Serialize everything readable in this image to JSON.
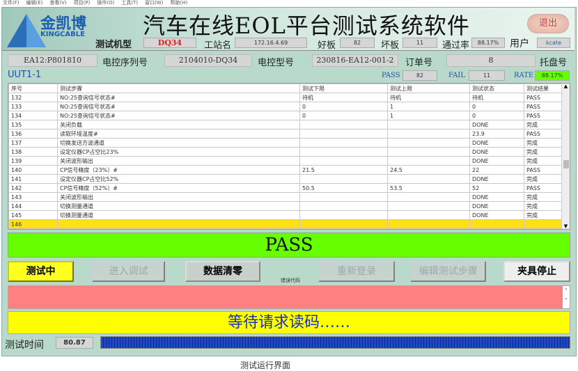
{
  "menu": [
    "文件(F)",
    "编辑(E)",
    "查看(V)",
    "项目(P)",
    "操作(O)",
    "工具(T)",
    "窗口(W)",
    "帮助(H)"
  ],
  "header": {
    "title": "汽车在线EOL平台测试系统软件",
    "logo_text": "金凯博",
    "logo_sub": "KINGCABLE",
    "exit_label": "退出",
    "model_label": "测试机型",
    "model_value": "DQ34",
    "station_label": "工站名",
    "station_value": "172.16.4.69",
    "good_label": "好板",
    "good_value": "82",
    "bad_label": "坏板",
    "bad_value": "11",
    "rate_label": "通过率",
    "rate_value": "88.17%",
    "user_label": "用户",
    "user_value": "kcate"
  },
  "info": {
    "serial_value": "EA12:P801810",
    "serial_label": "电控序列号",
    "type_value": "2104010-DQ34",
    "type_label": "电控型号",
    "order_value": "230816-EA12-001-2",
    "order_label": "订单号",
    "tray_value": "8",
    "tray_label": "托盘号"
  },
  "uut": {
    "name": "UUT1-1",
    "pass_label": "PASS",
    "pass_value": "82",
    "fail_label": "FAIL",
    "fail_value": "11",
    "rate_label": "RATE",
    "rate_value": "88.17%"
  },
  "table": {
    "headers": [
      "序号",
      "测试步骤",
      "测试下限",
      "测试上限",
      "测试状态",
      "测试结果"
    ],
    "rows": [
      [
        "132",
        "NO:25查询信号状态#",
        "待机",
        "待机",
        "待机",
        "PASS"
      ],
      [
        "133",
        "NO:25查询信号状态#",
        "0",
        "1",
        "0",
        "PASS"
      ],
      [
        "134",
        "NO:25查询信号状态#",
        "0",
        "1",
        "0",
        "PASS"
      ],
      [
        "135",
        "关闭负载",
        "",
        "",
        "DONE",
        "完成"
      ],
      [
        "136",
        "读取环境温度#",
        "",
        "",
        "23.9",
        "PASS"
      ],
      [
        "137",
        "切换发送方波通道",
        "",
        "",
        "DONE",
        "完成"
      ],
      [
        "138",
        "设定仪器CP占空比23%",
        "",
        "",
        "DONE",
        "完成"
      ],
      [
        "139",
        "关闭波形输出",
        "",
        "",
        "DONE",
        "完成"
      ],
      [
        "140",
        "CP信号精度（23%）#",
        "21.5",
        "24.5",
        "22",
        "PASS"
      ],
      [
        "141",
        "设定仪器CP占空比52%",
        "",
        "",
        "DONE",
        "完成"
      ],
      [
        "142",
        "CP信号精度（52%）#",
        "50.5",
        "53.5",
        "52",
        "PASS"
      ],
      [
        "143",
        "关闭波形输出",
        "",
        "",
        "DONE",
        "完成"
      ],
      [
        "144",
        "切换测量通道",
        "",
        "",
        "DONE",
        "完成"
      ],
      [
        "145",
        "切换测量通道",
        "",
        "",
        "DONE",
        "完成"
      ],
      [
        "146",
        "",
        "",
        "",
        "",
        ""
      ]
    ]
  },
  "result": "PASS",
  "buttons": {
    "testing": "测试中",
    "debug": "进入调试",
    "clear": "数据清零",
    "error_label": "错误代码",
    "relogin": "重新登录",
    "edit": "编辑测试步骤",
    "stop": "夹具停止"
  },
  "status_message": "等待请求读码……",
  "footer": {
    "time_label": "测试时间",
    "time_value": "80.87",
    "progress": 1.0
  },
  "caption": "测试运行界面",
  "colors": {
    "pass": "#66ff00",
    "error": "#ff8080",
    "status": "#ffff00",
    "highlight": "#ffe014",
    "progress": "#1040c0"
  }
}
